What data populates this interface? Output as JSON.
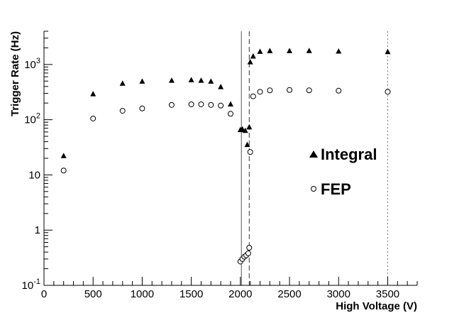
{
  "chart_data": {
    "type": "scatter",
    "title": "",
    "xlabel": "High Voltage (V)",
    "ylabel": "Trigger Rate (Hz)",
    "xlim": [
      0,
      3800
    ],
    "ylim": [
      0.1,
      4000
    ],
    "yscale": "log",
    "x_ticks": [
      0,
      500,
      1000,
      1500,
      2000,
      2500,
      3000,
      3500
    ],
    "y_ticks": [
      {
        "value": 0.1,
        "base": "10",
        "exp": "-1"
      },
      {
        "value": 1,
        "base": "1",
        "exp": ""
      },
      {
        "value": 10,
        "base": "10",
        "exp": ""
      },
      {
        "value": 100,
        "base": "10",
        "exp": "2"
      },
      {
        "value": 1000,
        "base": "10",
        "exp": "3"
      }
    ],
    "grid": false,
    "legend_position": "center-right",
    "series": [
      {
        "name": "Integral",
        "marker": "triangle",
        "points": [
          [
            200,
            22
          ],
          [
            500,
            290
          ],
          [
            800,
            450
          ],
          [
            1000,
            490
          ],
          [
            1300,
            510
          ],
          [
            1500,
            520
          ],
          [
            1600,
            510
          ],
          [
            1700,
            490
          ],
          [
            1800,
            390
          ],
          [
            1900,
            190
          ],
          [
            2000,
            65
          ],
          [
            2020,
            67
          ],
          [
            2050,
            63
          ],
          [
            2070,
            35
          ],
          [
            2090,
            73
          ],
          [
            2100,
            1100
          ],
          [
            2130,
            1400
          ],
          [
            2200,
            1700
          ],
          [
            2300,
            1750
          ],
          [
            2500,
            1750
          ],
          [
            2700,
            1760
          ],
          [
            3000,
            1720
          ],
          [
            3500,
            1680
          ]
        ]
      },
      {
        "name": "FEP",
        "marker": "open-circle",
        "points": [
          [
            200,
            12
          ],
          [
            500,
            105
          ],
          [
            800,
            145
          ],
          [
            1000,
            160
          ],
          [
            1300,
            185
          ],
          [
            1500,
            190
          ],
          [
            1600,
            190
          ],
          [
            1700,
            185
          ],
          [
            1800,
            180
          ],
          [
            1900,
            128
          ],
          [
            2000,
            0.27
          ],
          [
            2020,
            0.3
          ],
          [
            2040,
            0.33
          ],
          [
            2060,
            0.35
          ],
          [
            2080,
            0.38
          ],
          [
            2090,
            0.48
          ],
          [
            2100,
            26
          ],
          [
            2130,
            265
          ],
          [
            2200,
            320
          ],
          [
            2300,
            340
          ],
          [
            2500,
            345
          ],
          [
            2700,
            340
          ],
          [
            3000,
            335
          ],
          [
            3500,
            320
          ]
        ]
      }
    ],
    "vertical_lines": [
      {
        "x": 2010,
        "style": "solid"
      },
      {
        "x": 2090,
        "style": "dashed"
      },
      {
        "x": 3500,
        "style": "dotted"
      }
    ]
  }
}
